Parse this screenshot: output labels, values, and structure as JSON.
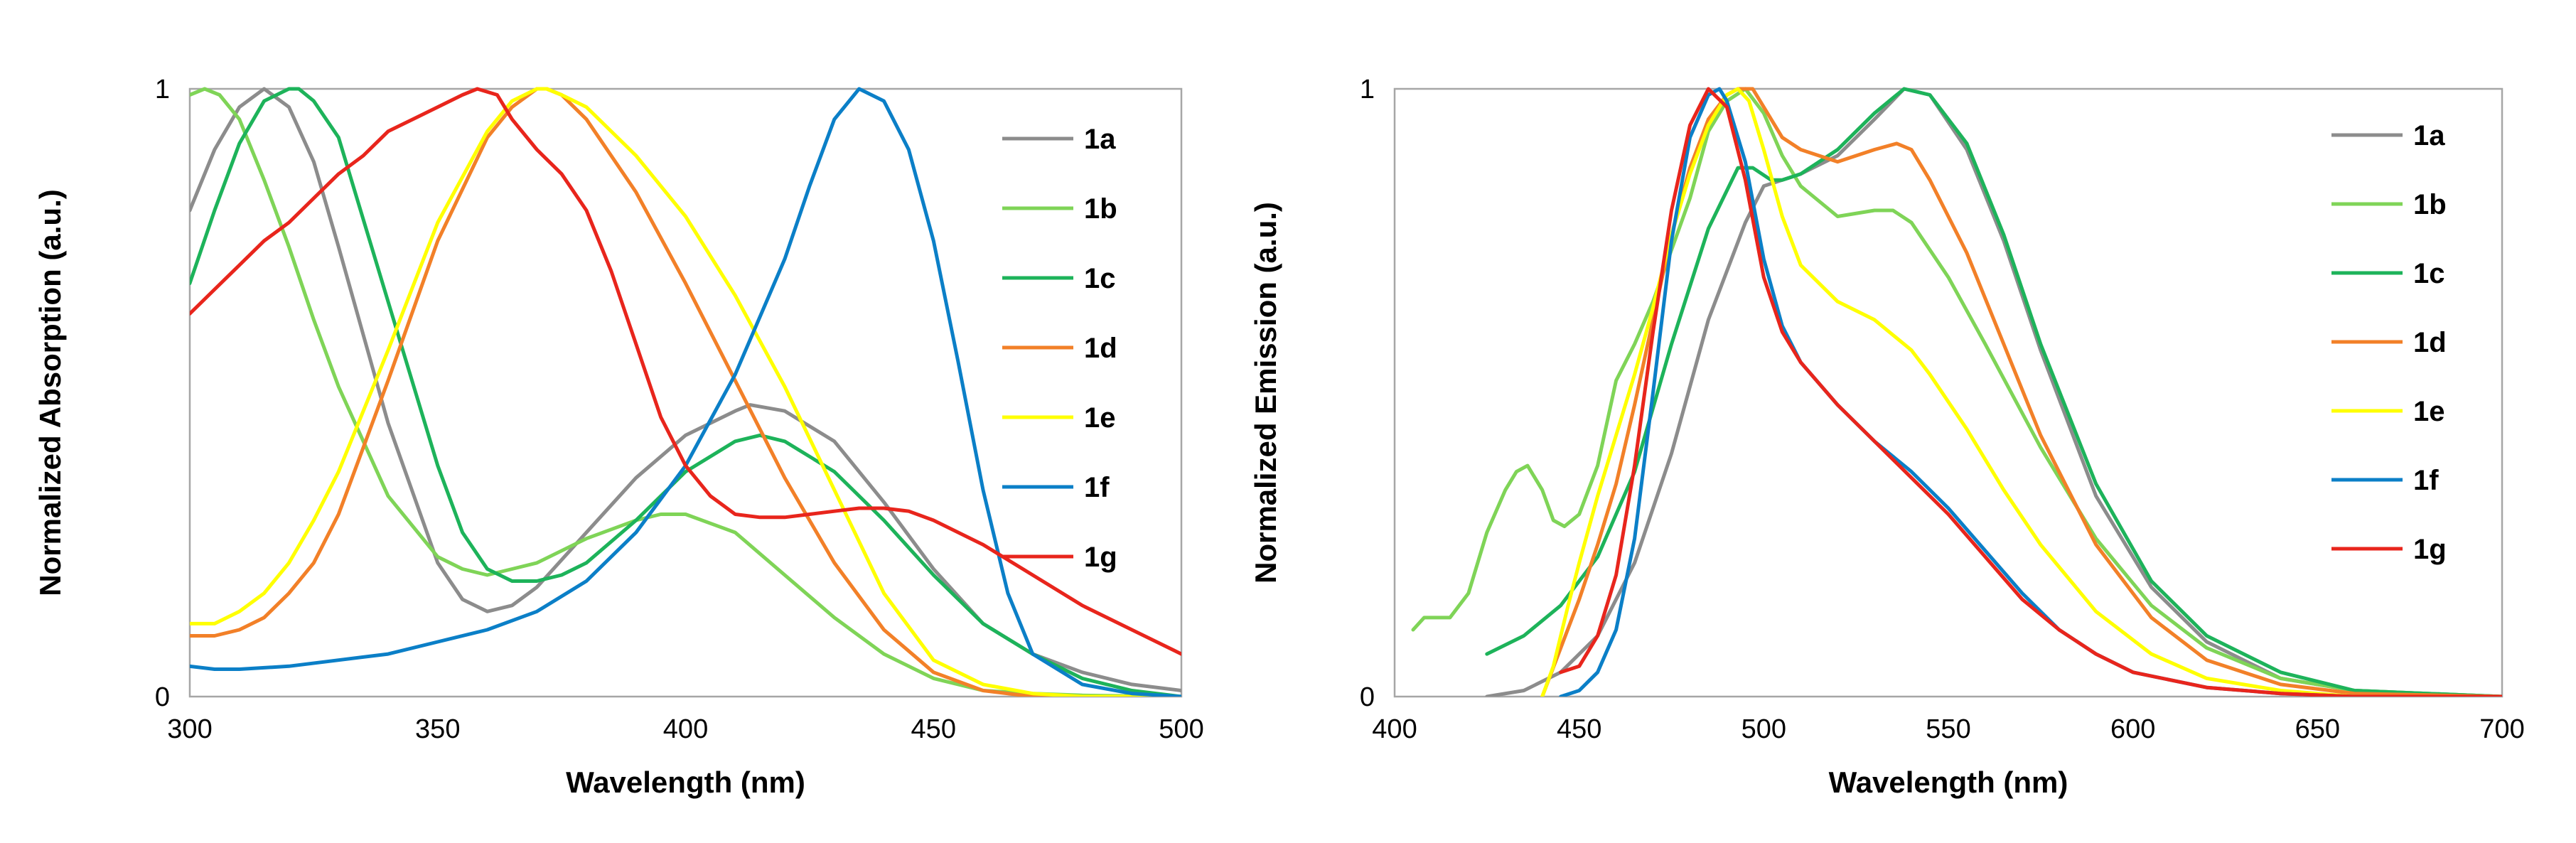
{
  "chart_data": [
    {
      "type": "line",
      "title": "",
      "xlabel": "Wavelength (nm)",
      "ylabel": "Normalized Absorption (a.u.)",
      "xlim": [
        300,
        500
      ],
      "ylim": [
        0,
        1
      ],
      "xticks": [
        "300",
        "350",
        "400",
        "450",
        "500"
      ],
      "yticks": [
        "0",
        "1"
      ],
      "legend": "right",
      "series": [
        {
          "name": "1a",
          "color": "#8c8c8c",
          "x": [
            300,
            305,
            310,
            315,
            320,
            325,
            330,
            340,
            350,
            355,
            360,
            365,
            370,
            380,
            390,
            400,
            410,
            413,
            420,
            430,
            440,
            450,
            460,
            470,
            480,
            490,
            500
          ],
          "y": [
            0.8,
            0.9,
            0.97,
            1.0,
            0.97,
            0.88,
            0.74,
            0.45,
            0.22,
            0.16,
            0.14,
            0.15,
            0.18,
            0.27,
            0.36,
            0.43,
            0.47,
            0.48,
            0.47,
            0.42,
            0.32,
            0.21,
            0.12,
            0.07,
            0.04,
            0.02,
            0.01
          ]
        },
        {
          "name": "1b",
          "color": "#7fd457",
          "x": [
            300,
            303,
            306,
            310,
            315,
            320,
            325,
            330,
            340,
            350,
            355,
            360,
            365,
            370,
            380,
            390,
            395,
            400,
            410,
            420,
            430,
            440,
            450,
            460,
            470,
            480,
            500
          ],
          "y": [
            0.99,
            1.0,
            0.99,
            0.95,
            0.85,
            0.74,
            0.62,
            0.51,
            0.33,
            0.23,
            0.21,
            0.2,
            0.21,
            0.22,
            0.26,
            0.29,
            0.3,
            0.3,
            0.27,
            0.2,
            0.13,
            0.07,
            0.03,
            0.01,
            0.005,
            0.002,
            0.0
          ]
        },
        {
          "name": "1c",
          "color": "#1db35a",
          "x": [
            300,
            305,
            310,
            315,
            320,
            322,
            325,
            330,
            340,
            350,
            355,
            360,
            365,
            370,
            375,
            380,
            390,
            400,
            410,
            415,
            420,
            430,
            440,
            450,
            460,
            470,
            480,
            490,
            500
          ],
          "y": [
            0.68,
            0.8,
            0.91,
            0.98,
            1.0,
            1.0,
            0.98,
            0.92,
            0.65,
            0.38,
            0.27,
            0.21,
            0.19,
            0.19,
            0.2,
            0.22,
            0.29,
            0.37,
            0.42,
            0.43,
            0.42,
            0.37,
            0.29,
            0.2,
            0.12,
            0.07,
            0.03,
            0.01,
            0.0
          ]
        },
        {
          "name": "1d",
          "color": "#f28028",
          "x": [
            300,
            305,
            310,
            315,
            320,
            325,
            330,
            340,
            350,
            360,
            365,
            370,
            372,
            375,
            380,
            390,
            400,
            410,
            420,
            430,
            440,
            450,
            460,
            470,
            480,
            500
          ],
          "y": [
            0.1,
            0.1,
            0.11,
            0.13,
            0.17,
            0.22,
            0.3,
            0.52,
            0.75,
            0.92,
            0.97,
            1.0,
            1.0,
            0.99,
            0.95,
            0.83,
            0.68,
            0.52,
            0.36,
            0.22,
            0.11,
            0.04,
            0.01,
            0.0,
            0.0,
            0.0
          ]
        },
        {
          "name": "1e",
          "color": "#ffff00",
          "x": [
            300,
            305,
            310,
            315,
            320,
            325,
            330,
            340,
            350,
            360,
            365,
            370,
            372,
            375,
            380,
            390,
            400,
            410,
            420,
            430,
            440,
            450,
            460,
            470,
            480,
            500
          ],
          "y": [
            0.12,
            0.12,
            0.14,
            0.17,
            0.22,
            0.29,
            0.37,
            0.57,
            0.78,
            0.93,
            0.98,
            1.0,
            1.0,
            0.99,
            0.97,
            0.89,
            0.79,
            0.66,
            0.51,
            0.34,
            0.17,
            0.06,
            0.02,
            0.005,
            0.0,
            0.0
          ]
        },
        {
          "name": "1f",
          "color": "#0b7fc7",
          "x": [
            300,
            305,
            310,
            320,
            330,
            340,
            350,
            360,
            370,
            380,
            390,
            400,
            410,
            420,
            425,
            430,
            435,
            440,
            445,
            450,
            455,
            460,
            465,
            470,
            480,
            490,
            500
          ],
          "y": [
            0.05,
            0.045,
            0.045,
            0.05,
            0.06,
            0.07,
            0.09,
            0.11,
            0.14,
            0.19,
            0.27,
            0.38,
            0.53,
            0.72,
            0.84,
            0.95,
            1.0,
            0.98,
            0.9,
            0.75,
            0.55,
            0.34,
            0.17,
            0.07,
            0.02,
            0.005,
            0.0
          ]
        },
        {
          "name": "1g",
          "color": "#e8251c",
          "x": [
            300,
            305,
            310,
            315,
            320,
            325,
            330,
            335,
            340,
            345,
            350,
            355,
            358,
            362,
            365,
            370,
            375,
            380,
            385,
            390,
            395,
            400,
            405,
            410,
            415,
            420,
            425,
            430,
            435,
            440,
            445,
            450,
            460,
            470,
            480,
            490,
            500
          ],
          "y": [
            0.63,
            0.67,
            0.71,
            0.75,
            0.78,
            0.82,
            0.86,
            0.89,
            0.93,
            0.95,
            0.97,
            0.99,
            1.0,
            0.99,
            0.95,
            0.9,
            0.86,
            0.8,
            0.7,
            0.58,
            0.46,
            0.38,
            0.33,
            0.3,
            0.295,
            0.295,
            0.3,
            0.305,
            0.31,
            0.31,
            0.305,
            0.29,
            0.25,
            0.2,
            0.15,
            0.11,
            0.07
          ]
        }
      ]
    },
    {
      "type": "line",
      "title": "",
      "xlabel": "Wavelength (nm)",
      "ylabel": "Normalized Emission (a.u.)",
      "xlim": [
        400,
        700
      ],
      "ylim": [
        0,
        1
      ],
      "xticks": [
        "400",
        "450",
        "500",
        "550",
        "600",
        "650",
        "700"
      ],
      "yticks": [
        "0",
        "1"
      ],
      "legend": "right",
      "series": [
        {
          "name": "1a",
          "color": "#8c8c8c",
          "x": [
            425,
            435,
            445,
            455,
            465,
            475,
            485,
            495,
            500,
            505,
            510,
            520,
            530,
            538,
            545,
            555,
            565,
            575,
            590,
            605,
            620,
            640,
            660,
            700
          ],
          "y": [
            0.0,
            0.01,
            0.04,
            0.1,
            0.22,
            0.4,
            0.62,
            0.78,
            0.84,
            0.85,
            0.86,
            0.89,
            0.95,
            1.0,
            0.99,
            0.9,
            0.75,
            0.57,
            0.33,
            0.18,
            0.09,
            0.03,
            0.01,
            0.0
          ]
        },
        {
          "name": "1b",
          "color": "#7fd457",
          "x": [
            405,
            408,
            412,
            415,
            420,
            425,
            430,
            433,
            436,
            440,
            443,
            446,
            450,
            455,
            460,
            465,
            470,
            480,
            485,
            490,
            495,
            500,
            505,
            510,
            520,
            530,
            535,
            540,
            550,
            560,
            575,
            590,
            605,
            620,
            640,
            660,
            700
          ],
          "y": [
            0.11,
            0.13,
            0.13,
            0.13,
            0.17,
            0.27,
            0.34,
            0.37,
            0.38,
            0.34,
            0.29,
            0.28,
            0.3,
            0.38,
            0.52,
            0.58,
            0.65,
            0.82,
            0.93,
            0.98,
            1.0,
            0.96,
            0.89,
            0.84,
            0.79,
            0.8,
            0.8,
            0.78,
            0.69,
            0.58,
            0.41,
            0.26,
            0.15,
            0.08,
            0.03,
            0.01,
            0.0
          ]
        },
        {
          "name": "1c",
          "color": "#1db35a",
          "x": [
            425,
            435,
            445,
            455,
            465,
            475,
            485,
            493,
            497,
            502,
            505,
            510,
            520,
            530,
            538,
            545,
            555,
            565,
            575,
            590,
            605,
            620,
            640,
            660,
            700
          ],
          "y": [
            0.07,
            0.1,
            0.15,
            0.23,
            0.37,
            0.58,
            0.77,
            0.87,
            0.87,
            0.85,
            0.85,
            0.86,
            0.9,
            0.96,
            1.0,
            0.99,
            0.91,
            0.76,
            0.58,
            0.35,
            0.19,
            0.1,
            0.04,
            0.01,
            0.0
          ]
        },
        {
          "name": "1d",
          "color": "#f28028",
          "x": [
            440,
            445,
            450,
            455,
            460,
            465,
            470,
            475,
            480,
            485,
            490,
            493,
            497,
            500,
            505,
            510,
            520,
            530,
            536,
            540,
            545,
            555,
            565,
            575,
            590,
            605,
            620,
            640,
            660,
            700
          ],
          "y": [
            0.0,
            0.08,
            0.16,
            0.25,
            0.35,
            0.48,
            0.62,
            0.76,
            0.87,
            0.95,
            0.99,
            1.0,
            1.0,
            0.97,
            0.92,
            0.9,
            0.88,
            0.9,
            0.91,
            0.9,
            0.85,
            0.73,
            0.58,
            0.43,
            0.25,
            0.13,
            0.06,
            0.02,
            0.005,
            0.0
          ]
        },
        {
          "name": "1e",
          "color": "#ffff00",
          "x": [
            440,
            443,
            447,
            450,
            455,
            460,
            465,
            470,
            475,
            480,
            485,
            490,
            493,
            496,
            500,
            505,
            510,
            520,
            530,
            540,
            545,
            555,
            565,
            575,
            590,
            605,
            620,
            640,
            660,
            700
          ],
          "y": [
            0.0,
            0.05,
            0.15,
            0.22,
            0.33,
            0.43,
            0.53,
            0.64,
            0.76,
            0.86,
            0.94,
            0.99,
            1.0,
            0.98,
            0.9,
            0.79,
            0.71,
            0.65,
            0.62,
            0.57,
            0.53,
            0.44,
            0.34,
            0.25,
            0.14,
            0.07,
            0.03,
            0.01,
            0.0,
            0.0
          ]
        },
        {
          "name": "1f",
          "color": "#0b7fc7",
          "x": [
            445,
            450,
            455,
            460,
            465,
            470,
            475,
            480,
            485,
            488,
            490,
            495,
            500,
            505,
            510,
            520,
            530,
            540,
            550,
            560,
            570,
            580,
            590,
            600,
            620,
            640,
            660,
            700
          ],
          "y": [
            0.0,
            0.01,
            0.04,
            0.11,
            0.26,
            0.5,
            0.75,
            0.92,
            0.99,
            1.0,
            0.98,
            0.88,
            0.72,
            0.61,
            0.55,
            0.48,
            0.42,
            0.37,
            0.31,
            0.24,
            0.17,
            0.11,
            0.07,
            0.04,
            0.015,
            0.005,
            0.0,
            0.0
          ]
        },
        {
          "name": "1g",
          "color": "#e8251c",
          "x": [
            445,
            450,
            455,
            460,
            465,
            470,
            475,
            480,
            485,
            490,
            495,
            500,
            505,
            510,
            520,
            530,
            540,
            550,
            560,
            570,
            580,
            590,
            600,
            620,
            640,
            660,
            700
          ],
          "y": [
            0.04,
            0.05,
            0.1,
            0.2,
            0.38,
            0.6,
            0.8,
            0.94,
            1.0,
            0.97,
            0.85,
            0.69,
            0.6,
            0.55,
            0.48,
            0.42,
            0.36,
            0.3,
            0.23,
            0.16,
            0.11,
            0.07,
            0.04,
            0.015,
            0.005,
            0.0,
            0.0
          ]
        }
      ]
    }
  ]
}
